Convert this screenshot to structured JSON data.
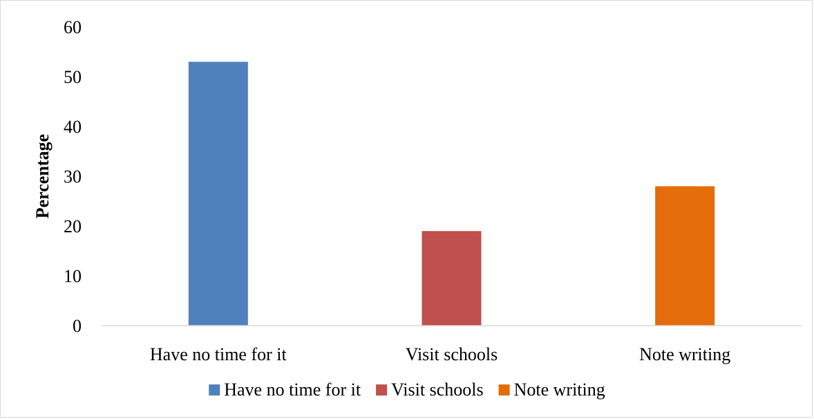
{
  "chart_data": {
    "type": "bar",
    "categories": [
      "Have no time for it",
      "Visit schools",
      "Note writing"
    ],
    "values": [
      53,
      19,
      28
    ],
    "colors": [
      "#4F81BD",
      "#C0504D",
      "#E46C0A"
    ],
    "ylabel": "Percentage",
    "ylim": [
      0,
      60
    ],
    "yticks": [
      0,
      10,
      20,
      30,
      40,
      50,
      60
    ],
    "grid": false,
    "legend": {
      "position": "bottom",
      "entries": [
        "Have no time for it",
        "Visit schools",
        "Note writing"
      ]
    }
  }
}
